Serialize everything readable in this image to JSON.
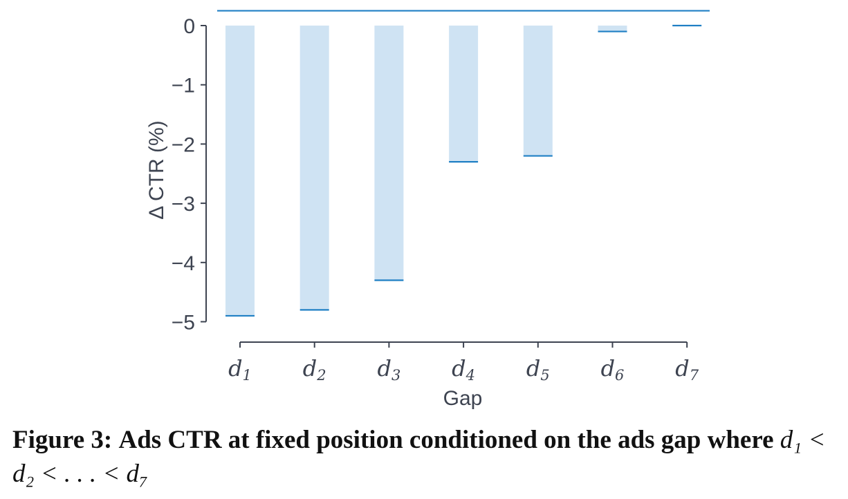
{
  "chart_data": {
    "type": "bar",
    "categories": [
      "d1",
      "d2",
      "d3",
      "d4",
      "d5",
      "d6",
      "d7"
    ],
    "category_labels": [
      {
        "base": "d",
        "sub": "1"
      },
      {
        "base": "d",
        "sub": "2"
      },
      {
        "base": "d",
        "sub": "3"
      },
      {
        "base": "d",
        "sub": "4"
      },
      {
        "base": "d",
        "sub": "5"
      },
      {
        "base": "d",
        "sub": "6"
      },
      {
        "base": "d",
        "sub": "7"
      }
    ],
    "values": [
      -4.9,
      -4.8,
      -4.3,
      -2.3,
      -2.2,
      -0.1,
      0.0
    ],
    "reference_line": 0.25,
    "yticks": [
      0,
      -1,
      -2,
      -3,
      -4,
      -5
    ],
    "ytick_labels": [
      "0",
      "−1",
      "−2",
      "−3",
      "−4",
      "−5"
    ],
    "ylim": [
      -5,
      0.25
    ],
    "xlabel": "Gap",
    "ylabel": "Δ CTR (%)",
    "grid": false,
    "colors": {
      "bar_fill": "#cfe3f3",
      "bar_edge": "#1f7fc4",
      "axis": "#3d4350"
    }
  },
  "caption": {
    "label": "Figure 3:",
    "text": "Ads CTR at fixed position conditioned on the ads gap where",
    "math": "d₁ < d₂ < . . . < d₇"
  }
}
